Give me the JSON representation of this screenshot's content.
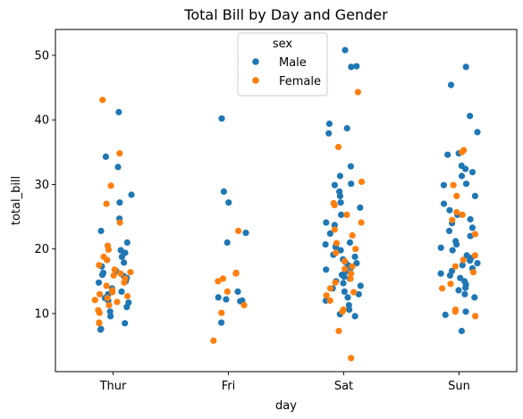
{
  "chart_data": {
    "type": "scatter",
    "subtype": "strip",
    "title": "Total Bill by Day and Gender",
    "xlabel": "day",
    "ylabel": "total_bill",
    "categories": [
      "Thur",
      "Fri",
      "Sat",
      "Sun"
    ],
    "ylim": [
      1.0,
      54.0
    ],
    "yticks": [
      10,
      20,
      30,
      40,
      50
    ],
    "grid": false,
    "legend": {
      "title": "sex",
      "placement": "top-center",
      "entries": [
        "Male",
        "Female"
      ]
    },
    "colors": {
      "Male": "#1f77b4",
      "Female": "#ff7f0e"
    },
    "series": [
      {
        "name": "Male",
        "color": "#1f77b4",
        "points": [
          [
            "Thur",
            41.2
          ],
          [
            "Thur",
            34.3
          ],
          [
            "Thur",
            32.7
          ],
          [
            "Thur",
            28.4
          ],
          [
            "Thur",
            27.2
          ],
          [
            "Thur",
            24.7
          ],
          [
            "Thur",
            22.8
          ],
          [
            "Thur",
            21.0
          ],
          [
            "Thur",
            19.8
          ],
          [
            "Thur",
            19.4
          ],
          [
            "Thur",
            18.8
          ],
          [
            "Thur",
            18.3
          ],
          [
            "Thur",
            17.9
          ],
          [
            "Thur",
            17.3
          ],
          [
            "Thur",
            16.6
          ],
          [
            "Thur",
            16.3
          ],
          [
            "Thur",
            16.0
          ],
          [
            "Thur",
            15.8
          ],
          [
            "Thur",
            15.5
          ],
          [
            "Thur",
            15.0
          ],
          [
            "Thur",
            14.8
          ],
          [
            "Thur",
            13.9
          ],
          [
            "Thur",
            13.4
          ],
          [
            "Thur",
            13.0
          ],
          [
            "Thur",
            12.4
          ],
          [
            "Thur",
            12.0
          ],
          [
            "Thur",
            11.7
          ],
          [
            "Thur",
            11.0
          ],
          [
            "Thur",
            10.3
          ],
          [
            "Thur",
            9.6
          ],
          [
            "Thur",
            8.5
          ],
          [
            "Thur",
            7.6
          ],
          [
            "Thur",
            7.5
          ],
          [
            "Fri",
            40.2
          ],
          [
            "Fri",
            28.9
          ],
          [
            "Fri",
            27.2
          ],
          [
            "Fri",
            22.5
          ],
          [
            "Fri",
            21.0
          ],
          [
            "Fri",
            13.4
          ],
          [
            "Fri",
            12.5
          ],
          [
            "Fri",
            12.2
          ],
          [
            "Fri",
            12.0
          ],
          [
            "Fri",
            11.9
          ],
          [
            "Fri",
            8.6
          ],
          [
            "Sat",
            50.8
          ],
          [
            "Sat",
            48.3
          ],
          [
            "Sat",
            48.2
          ],
          [
            "Sat",
            39.4
          ],
          [
            "Sat",
            38.7
          ],
          [
            "Sat",
            37.9
          ],
          [
            "Sat",
            32.8
          ],
          [
            "Sat",
            31.3
          ],
          [
            "Sat",
            30.1
          ],
          [
            "Sat",
            29.9
          ],
          [
            "Sat",
            28.9
          ],
          [
            "Sat",
            28.2
          ],
          [
            "Sat",
            27.2
          ],
          [
            "Sat",
            26.4
          ],
          [
            "Sat",
            25.3
          ],
          [
            "Sat",
            24.1
          ],
          [
            "Sat",
            23.7
          ],
          [
            "Sat",
            22.4
          ],
          [
            "Sat",
            21.0
          ],
          [
            "Sat",
            20.7
          ],
          [
            "Sat",
            20.5
          ],
          [
            "Sat",
            20.3
          ],
          [
            "Sat",
            19.8
          ],
          [
            "Sat",
            19.1
          ],
          [
            "Sat",
            18.8
          ],
          [
            "Sat",
            18.4
          ],
          [
            "Sat",
            18.0
          ],
          [
            "Sat",
            17.8
          ],
          [
            "Sat",
            17.5
          ],
          [
            "Sat",
            17.1
          ],
          [
            "Sat",
            16.8
          ],
          [
            "Sat",
            16.5
          ],
          [
            "Sat",
            16.0
          ],
          [
            "Sat",
            15.7
          ],
          [
            "Sat",
            15.4
          ],
          [
            "Sat",
            15.0
          ],
          [
            "Sat",
            14.7
          ],
          [
            "Sat",
            14.3
          ],
          [
            "Sat",
            13.9
          ],
          [
            "Sat",
            13.4
          ],
          [
            "Sat",
            13.0
          ],
          [
            "Sat",
            12.5
          ],
          [
            "Sat",
            12.0
          ],
          [
            "Sat",
            11.3
          ],
          [
            "Sat",
            10.6
          ],
          [
            "Sat",
            9.9
          ],
          [
            "Sat",
            9.6
          ],
          [
            "Sun",
            48.2
          ],
          [
            "Sun",
            45.4
          ],
          [
            "Sun",
            40.6
          ],
          [
            "Sun",
            38.1
          ],
          [
            "Sun",
            34.8
          ],
          [
            "Sun",
            34.6
          ],
          [
            "Sun",
            32.9
          ],
          [
            "Sun",
            32.4
          ],
          [
            "Sun",
            31.9
          ],
          [
            "Sun",
            31.3
          ],
          [
            "Sun",
            30.1
          ],
          [
            "Sun",
            29.9
          ],
          [
            "Sun",
            28.2
          ],
          [
            "Sun",
            27.0
          ],
          [
            "Sun",
            26.0
          ],
          [
            "Sun",
            25.3
          ],
          [
            "Sun",
            24.6
          ],
          [
            "Sun",
            24.0
          ],
          [
            "Sun",
            23.3
          ],
          [
            "Sun",
            22.8
          ],
          [
            "Sun",
            22.0
          ],
          [
            "Sun",
            21.2
          ],
          [
            "Sun",
            20.7
          ],
          [
            "Sun",
            20.2
          ],
          [
            "Sun",
            19.8
          ],
          [
            "Sun",
            19.0
          ],
          [
            "Sun",
            18.6
          ],
          [
            "Sun",
            18.2
          ],
          [
            "Sun",
            17.8
          ],
          [
            "Sun",
            17.5
          ],
          [
            "Sun",
            17.0
          ],
          [
            "Sun",
            16.6
          ],
          [
            "Sun",
            16.2
          ],
          [
            "Sun",
            15.9
          ],
          [
            "Sun",
            15.5
          ],
          [
            "Sun",
            15.0
          ],
          [
            "Sun",
            14.5
          ],
          [
            "Sun",
            14.0
          ],
          [
            "Sun",
            13.6
          ],
          [
            "Sun",
            13.0
          ],
          [
            "Sun",
            12.5
          ],
          [
            "Sun",
            10.3
          ],
          [
            "Sun",
            9.8
          ],
          [
            "Sun",
            7.3
          ]
        ]
      },
      {
        "name": "Female",
        "color": "#ff7f0e",
        "points": [
          [
            "Thur",
            43.1
          ],
          [
            "Thur",
            34.8
          ],
          [
            "Thur",
            29.8
          ],
          [
            "Thur",
            27.0
          ],
          [
            "Thur",
            24.1
          ],
          [
            "Thur",
            20.5
          ],
          [
            "Thur",
            19.9
          ],
          [
            "Thur",
            18.8
          ],
          [
            "Thur",
            18.3
          ],
          [
            "Thur",
            17.5
          ],
          [
            "Thur",
            16.8
          ],
          [
            "Thur",
            16.4
          ],
          [
            "Thur",
            16.2
          ],
          [
            "Thur",
            15.9
          ],
          [
            "Thur",
            15.4
          ],
          [
            "Thur",
            14.8
          ],
          [
            "Thur",
            14.3
          ],
          [
            "Thur",
            13.6
          ],
          [
            "Thur",
            13.3
          ],
          [
            "Thur",
            13.0
          ],
          [
            "Thur",
            12.7
          ],
          [
            "Thur",
            12.4
          ],
          [
            "Thur",
            12.1
          ],
          [
            "Thur",
            11.8
          ],
          [
            "Thur",
            11.3
          ],
          [
            "Thur",
            10.5
          ],
          [
            "Thur",
            10.1
          ],
          [
            "Thur",
            8.6
          ],
          [
            "Thur",
            8.5
          ],
          [
            "Fri",
            22.8
          ],
          [
            "Fri",
            16.3
          ],
          [
            "Fri",
            16.2
          ],
          [
            "Fri",
            15.4
          ],
          [
            "Fri",
            15.0
          ],
          [
            "Fri",
            13.4
          ],
          [
            "Fri",
            11.3
          ],
          [
            "Fri",
            10.1
          ],
          [
            "Fri",
            5.8
          ],
          [
            "Sat",
            44.3
          ],
          [
            "Sat",
            35.8
          ],
          [
            "Sat",
            30.4
          ],
          [
            "Sat",
            27.1
          ],
          [
            "Sat",
            26.8
          ],
          [
            "Sat",
            25.3
          ],
          [
            "Sat",
            24.1
          ],
          [
            "Sat",
            23.0
          ],
          [
            "Sat",
            22.1
          ],
          [
            "Sat",
            20.9
          ],
          [
            "Sat",
            20.0
          ],
          [
            "Sat",
            19.4
          ],
          [
            "Sat",
            18.1
          ],
          [
            "Sat",
            17.3
          ],
          [
            "Sat",
            16.9
          ],
          [
            "Sat",
            16.2
          ],
          [
            "Sat",
            15.4
          ],
          [
            "Sat",
            14.8
          ],
          [
            "Sat",
            13.9
          ],
          [
            "Sat",
            13.3
          ],
          [
            "Sat",
            12.8
          ],
          [
            "Sat",
            12.0
          ],
          [
            "Sat",
            10.6
          ],
          [
            "Sat",
            10.3
          ],
          [
            "Sat",
            7.3
          ],
          [
            "Sat",
            3.1
          ],
          [
            "Sun",
            35.3
          ],
          [
            "Sun",
            35.0
          ],
          [
            "Sun",
            29.9
          ],
          [
            "Sun",
            28.2
          ],
          [
            "Sun",
            25.7
          ],
          [
            "Sun",
            25.3
          ],
          [
            "Sun",
            24.5
          ],
          [
            "Sun",
            22.3
          ],
          [
            "Sun",
            19.0
          ],
          [
            "Sun",
            18.3
          ],
          [
            "Sun",
            17.3
          ],
          [
            "Sun",
            16.4
          ],
          [
            "Sun",
            14.6
          ],
          [
            "Sun",
            13.9
          ],
          [
            "Sun",
            10.6
          ],
          [
            "Sun",
            10.3
          ],
          [
            "Sun",
            9.6
          ]
        ]
      }
    ]
  }
}
